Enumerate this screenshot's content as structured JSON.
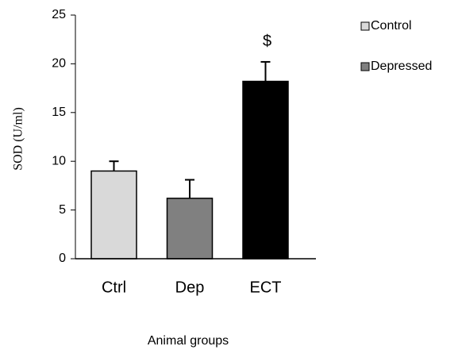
{
  "chart_data": {
    "type": "bar",
    "y_label": "SOD (U/ml)",
    "x_label": "Animal groups",
    "categories": [
      "Ctrl",
      "Dep",
      "ECT"
    ],
    "values": [
      9.0,
      6.2,
      18.2
    ],
    "errors": [
      1.0,
      1.9,
      2.0
    ],
    "colors": [
      "#d9d9d9",
      "#808080",
      "#000000"
    ],
    "ylim": [
      0,
      25
    ],
    "yticks": [
      0,
      5,
      10,
      15,
      20,
      25
    ],
    "legend": [
      {
        "label": "Control",
        "color": "#d9d9d9"
      },
      {
        "label": "Depressed",
        "color": "#808080"
      }
    ],
    "annotations": [
      {
        "text": "$",
        "category": 2
      }
    ]
  }
}
